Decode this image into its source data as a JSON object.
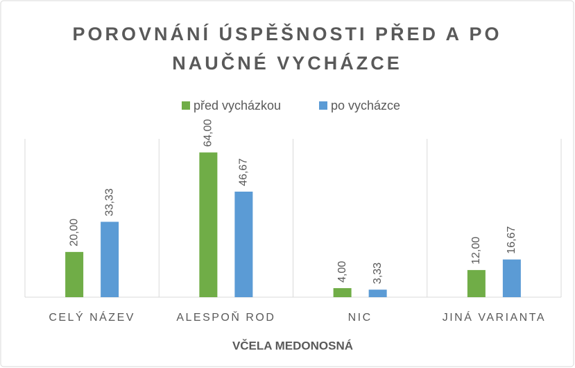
{
  "chart_data": {
    "type": "bar",
    "title": "POROVNÁNÍ ÚSPĚŠNOSTI PŘED A PO NAUČNÉ VYCHÁZCE",
    "x_label": "VČELA MEDONOSNÁ",
    "categories": [
      "CELÝ NÁZEV",
      "ALESPOŇ ROD",
      "NIC",
      "JINÁ VARIANTA"
    ],
    "series": [
      {
        "name": "před vycházkou",
        "color": "#70ad47",
        "values": [
          20,
          64,
          4,
          12
        ],
        "value_labels": [
          "20,00",
          "64,00",
          "4,00",
          "12,00"
        ]
      },
      {
        "name": "po vycházce",
        "color": "#5b9bd5",
        "values": [
          33.33,
          46.67,
          3.33,
          16.67
        ],
        "value_labels": [
          "33,33",
          "46,67",
          "3,33",
          "16,67"
        ]
      }
    ],
    "ylim": [
      0,
      70
    ],
    "legend": "top"
  }
}
